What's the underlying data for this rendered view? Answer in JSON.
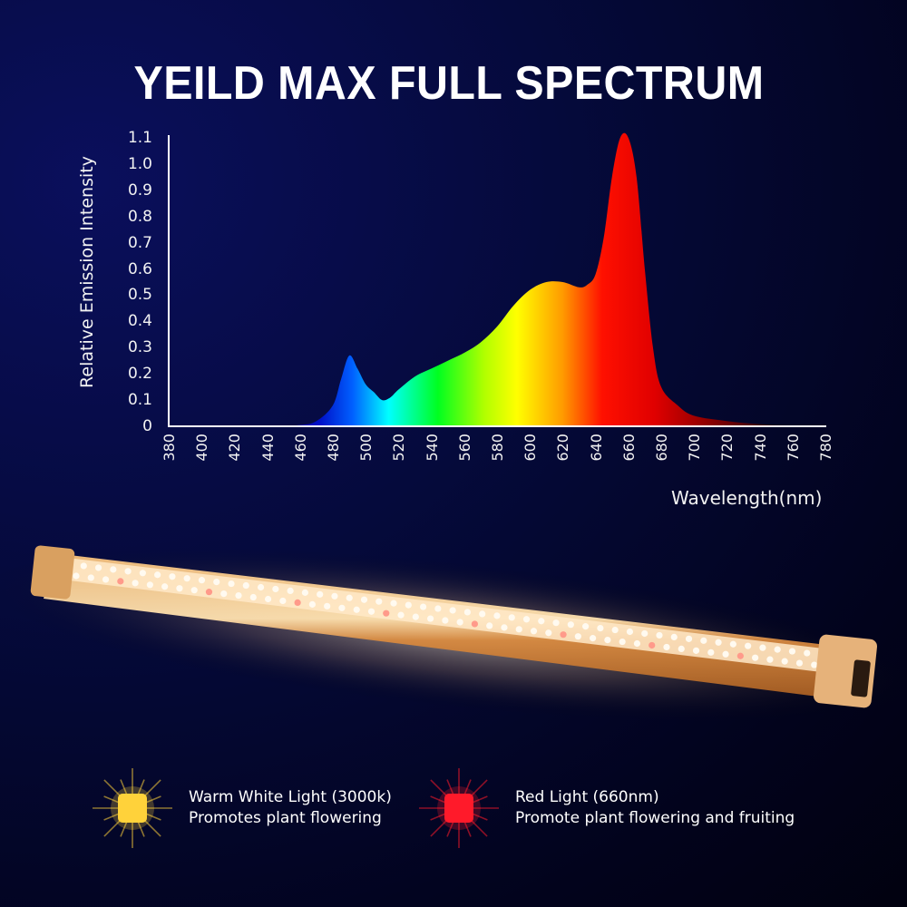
{
  "header": {
    "title": "YEILD MAX FULL SPECTRUM"
  },
  "chart_data": {
    "type": "area",
    "title": "YEILD MAX FULL SPECTRUM",
    "xlabel": "Wavelength(nm)",
    "ylabel": "Relative Emission Intensity",
    "xlim": [
      380,
      780
    ],
    "ylim": [
      0,
      1.1
    ],
    "x_ticks": [
      "380",
      "400",
      "420",
      "440",
      "460",
      "480",
      "500",
      "520",
      "540",
      "560",
      "580",
      "600",
      "620",
      "640",
      "660",
      "680",
      "700",
      "720",
      "740",
      "760",
      "780"
    ],
    "y_ticks": [
      "0",
      "0.1",
      "0.2",
      "0.3",
      "0.4",
      "0.5",
      "0.6",
      "0.7",
      "0.8",
      "0.9",
      "1.0",
      "1.1"
    ],
    "grid": false,
    "x": [
      380,
      440,
      460,
      470,
      480,
      485,
      490,
      495,
      500,
      505,
      510,
      515,
      520,
      530,
      540,
      550,
      560,
      570,
      580,
      590,
      600,
      610,
      620,
      630,
      635,
      640,
      645,
      650,
      655,
      660,
      665,
      670,
      675,
      680,
      690,
      700,
      720,
      740,
      760,
      780
    ],
    "values": [
      0,
      0,
      0.005,
      0.02,
      0.08,
      0.18,
      0.27,
      0.22,
      0.16,
      0.13,
      0.1,
      0.11,
      0.14,
      0.19,
      0.22,
      0.25,
      0.28,
      0.32,
      0.38,
      0.46,
      0.52,
      0.55,
      0.55,
      0.53,
      0.54,
      0.58,
      0.72,
      0.95,
      1.1,
      1.1,
      0.95,
      0.6,
      0.3,
      0.15,
      0.08,
      0.04,
      0.02,
      0.008,
      0.003,
      0.001
    ],
    "fill": "wavelength-gradient",
    "annotations": []
  },
  "product": {
    "name": "LED grow light bar",
    "glow_color": "#ffb060"
  },
  "legend": [
    {
      "title": "Warm White Light (3000k)",
      "desc": "Promotes plant flowering",
      "color": "#ffd23a"
    },
    {
      "title": "Red Light (660nm)",
      "desc": "Promote plant flowering and fruiting",
      "color": "#ff1a2a"
    }
  ]
}
